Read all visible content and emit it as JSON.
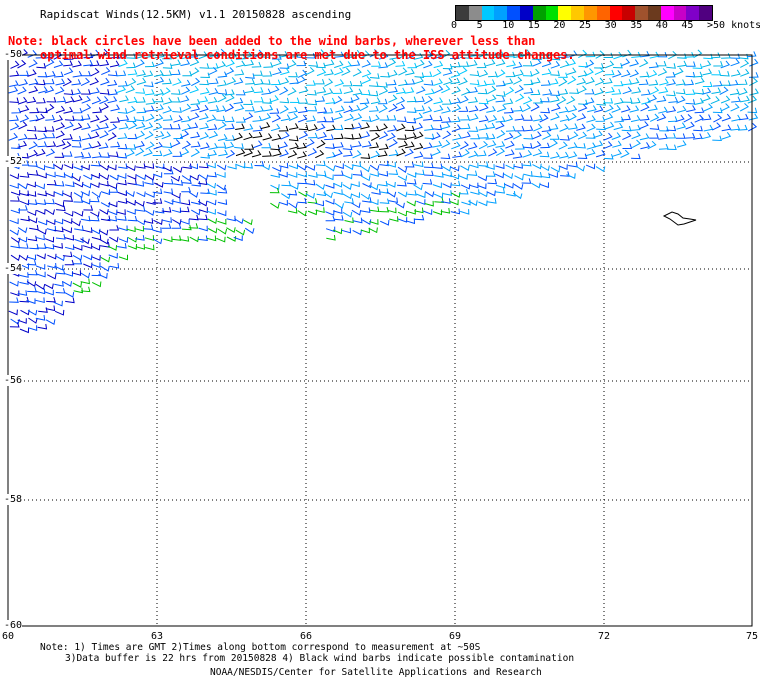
{
  "title": "Rapidscat Winds(12.5KM) v1.1 20150828 ascending",
  "note_line1": "Note: black circles have been added to the wind barbs, wherever less than",
  "note_line2": "optimal wind retrieval conditions are met due to the ISS attitude changes.",
  "colorbar": {
    "colors": [
      "#3c3c3c",
      "#8c8c8c",
      "#00c8ff",
      "#00a0ff",
      "#0050ff",
      "#0000c8",
      "#00a000",
      "#00e000",
      "#ffff00",
      "#ffc800",
      "#ff9600",
      "#ff6400",
      "#ff0000",
      "#c80000",
      "#a0522d",
      "#6b3a1e",
      "#ff00ff",
      "#c800c8",
      "#8000c8",
      "#500080"
    ],
    "labels": [
      "0",
      "5",
      "10",
      "15",
      "20",
      "25",
      "30",
      "35",
      "40",
      "45",
      ">50 knots"
    ]
  },
  "axes": {
    "x_ticks": [
      "60",
      "63",
      "66",
      "69",
      "72",
      "75"
    ],
    "y_ticks": [
      "-50",
      "-52",
      "-54",
      "-56",
      "-58",
      "-60"
    ]
  },
  "footer": {
    "line1": "Note: 1) Times are GMT 2)Times along bottom correspond to measurement at ~50S",
    "line2": "3)Data buffer is 22 hrs from 20150828 4) Black wind barbs indicate possible contamination",
    "line3": "NOAA/NESDIS/Center for Satellite Applications and Research"
  }
}
